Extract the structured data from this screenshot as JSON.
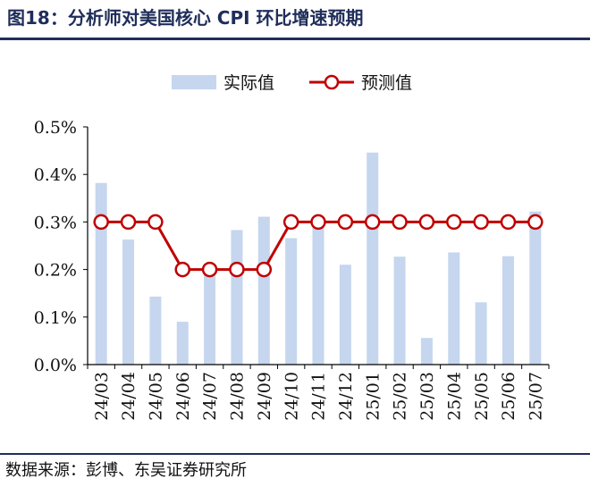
{
  "figure": {
    "title": "图18：分析师对美国核心 CPI 环比增速预期",
    "source": "数据来源：彭博、东吴证券研究所"
  },
  "colors": {
    "bar": "#c5d6ee",
    "line": "#c00000",
    "title": "#1f2d5a"
  },
  "chart_data": {
    "type": "bar+line",
    "categories": [
      "24/03",
      "24/04",
      "24/05",
      "24/06",
      "24/07",
      "24/08",
      "24/09",
      "24/10",
      "24/11",
      "24/12",
      "25/01",
      "25/02",
      "25/03",
      "25/04",
      "25/05",
      "25/06",
      "25/07"
    ],
    "series": [
      {
        "name": "实际值",
        "type": "bar",
        "values": [
          0.382,
          0.263,
          0.143,
          0.09,
          0.194,
          0.283,
          0.311,
          0.266,
          0.292,
          0.21,
          0.446,
          0.227,
          0.056,
          0.236,
          0.131,
          0.228,
          0.322
        ]
      },
      {
        "name": "预测值",
        "type": "line",
        "values": [
          0.3,
          0.3,
          0.3,
          0.2,
          0.2,
          0.2,
          0.2,
          0.3,
          0.3,
          0.3,
          0.3,
          0.3,
          0.3,
          0.3,
          0.3,
          0.3,
          0.3
        ]
      }
    ],
    "yticks": [
      "0.0%",
      "0.1%",
      "0.2%",
      "0.3%",
      "0.4%",
      "0.5%"
    ],
    "ylim": [
      0,
      0.5
    ],
    "grid": false,
    "legend_position": "top-center"
  }
}
